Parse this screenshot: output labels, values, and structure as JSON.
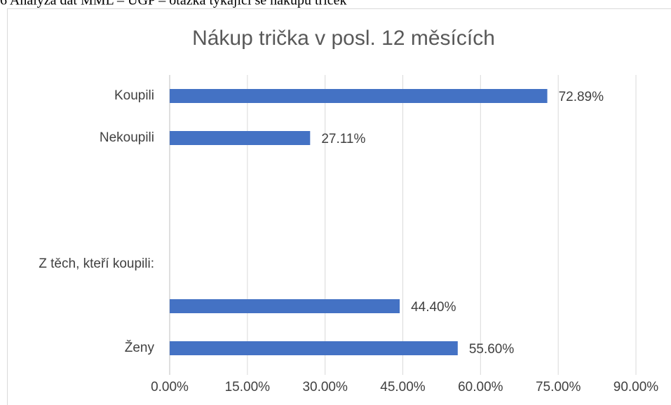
{
  "caption": "6 Analýza dat MML – UGP – otázka týkající se nákupu triček",
  "chart_data": {
    "type": "bar",
    "orientation": "horizontal",
    "title": "Nákup trička v posl. 12 měsících",
    "categories": [
      "Koupili",
      "Nekoupili",
      null,
      null,
      "Z těch, kteří koupili:",
      null,
      "Ženy"
    ],
    "values": [
      72.89,
      27.11,
      null,
      null,
      null,
      44.4,
      55.6
    ],
    "value_labels": [
      "72.89%",
      "27.11%",
      null,
      null,
      null,
      "44.40%",
      "55.60%"
    ],
    "color": "#4472c4",
    "xlim": [
      0,
      90
    ],
    "xticks": [
      {
        "value": 0,
        "label": "0.00%"
      },
      {
        "value": 15,
        "label": "15.00%"
      },
      {
        "value": 30,
        "label": "30.00%"
      },
      {
        "value": 45,
        "label": "45.00%"
      },
      {
        "value": 60,
        "label": "60.00%"
      },
      {
        "value": 75,
        "label": "75.00%"
      },
      {
        "value": 90,
        "label": "90.00%"
      }
    ],
    "grid": true
  }
}
